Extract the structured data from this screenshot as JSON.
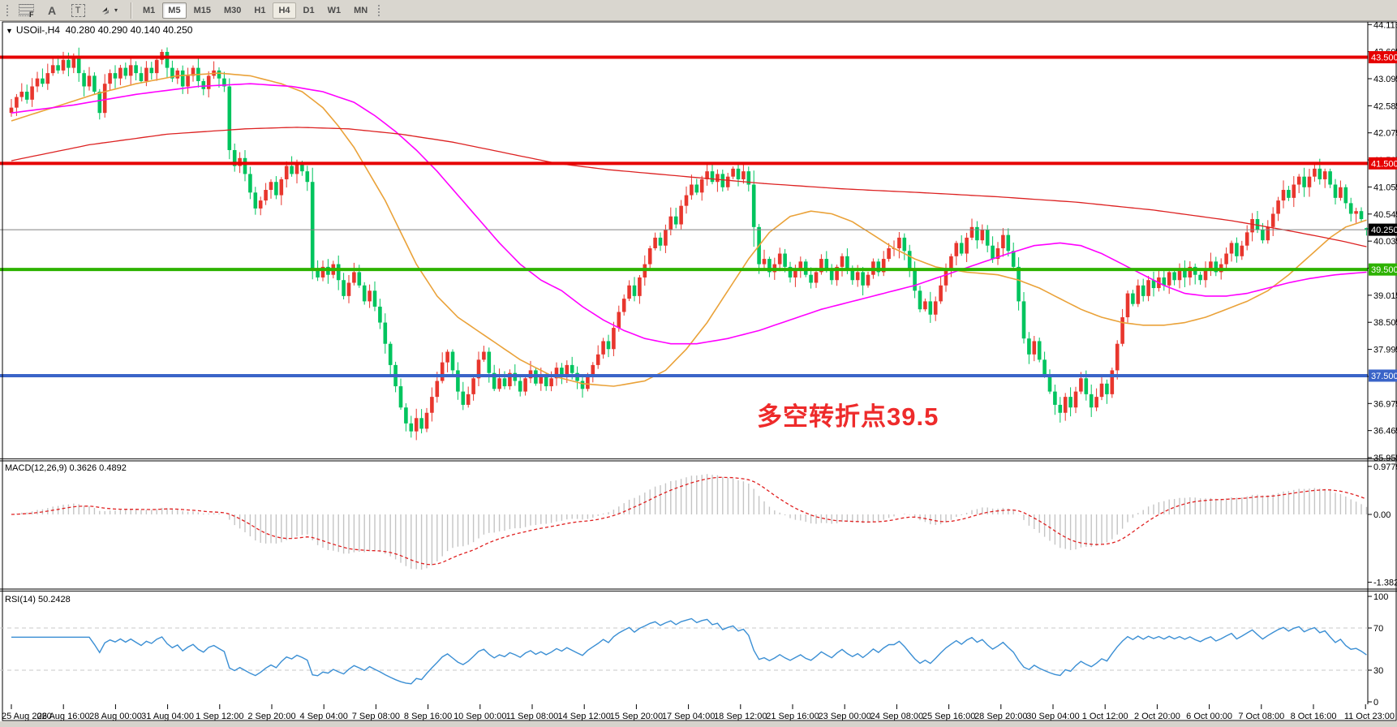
{
  "toolbar": {
    "tools": [
      {
        "name": "fibonacci-retracement",
        "label": "F"
      },
      {
        "name": "text",
        "label": "A"
      },
      {
        "name": "text-label",
        "label": "T"
      },
      {
        "name": "arrows",
        "label": "▴▾"
      }
    ],
    "arrows_caret": "▾",
    "timeframes": [
      "M1",
      "M5",
      "M15",
      "M30",
      "H1",
      "H4",
      "D1",
      "W1",
      "MN"
    ],
    "pressed_timeframe": "M5",
    "active_timeframe": "H4"
  },
  "chart_header": {
    "collapse_glyph": "▼",
    "text": "USOil-,H4  40.280 40.290 40.140 40.250"
  },
  "indicators": {
    "macd_header": "MACD(12,26,9) 0.3626 0.4892",
    "rsi_header": "RSI(14) 50.2428"
  },
  "annotation": {
    "text": "多空转折点39.5",
    "color": "#ee2b2b"
  },
  "chart_data": {
    "type": "candlestick",
    "symbol": "USOil-",
    "timeframe": "H4",
    "ohlc_current": {
      "open": 40.28,
      "high": 40.29,
      "low": 40.14,
      "close": 40.25
    },
    "colors": {
      "up_candle": "#e8362d",
      "down_candle": "#00c45e",
      "background": "#ffffff",
      "ma_fast": "#eaa239",
      "ma_medium": "#ff00ff",
      "ma_slow": "#dd2222",
      "macd_histogram": "#c4c4c4",
      "macd_signal": "#e02020",
      "rsi_line": "#3b8fd4"
    },
    "price_axis": {
      "min": 35.94,
      "max": 44.15,
      "tick_labels": [
        "44.115",
        "43.605",
        "43.095",
        "42.585",
        "42.075",
        "41.565",
        "41.055",
        "40.545",
        "40.035",
        "39.525",
        "39.015",
        "38.505",
        "37.995",
        "37.485",
        "36.975",
        "36.465",
        "35.955"
      ]
    },
    "levels": [
      {
        "label": "43.500",
        "price": 43.5,
        "color": "#e60000",
        "width": 4,
        "badge_text": "#ffffff"
      },
      {
        "label": "41.500",
        "price": 41.5,
        "color": "#e60000",
        "width": 4,
        "badge_text": "#ffffff"
      },
      {
        "label": "39.500",
        "price": 39.5,
        "color": "#2db200",
        "width": 4,
        "badge_text": "#ffffff"
      },
      {
        "label": "37.500",
        "price": 37.5,
        "color": "#3a64c8",
        "width": 4,
        "badge_text": "#ffffff"
      },
      {
        "label": "40.250",
        "price": 40.25,
        "color": "#808080",
        "width": 1,
        "badge_bg": "#000000",
        "badge_text": "#ffffff",
        "current": true
      }
    ],
    "time_labels": [
      "25 Aug 2020",
      "26 Aug 16:00",
      "28 Aug 00:00",
      "31 Aug 04:00",
      "1 Sep 12:00",
      "2 Sep 20:00",
      "4 Sep 04:00",
      "7 Sep 08:00",
      "8 Sep 16:00",
      "10 Sep 00:00",
      "11 Sep 08:00",
      "14 Sep 12:00",
      "15 Sep 20:00",
      "17 Sep 04:00",
      "18 Sep 12:00",
      "21 Sep 16:00",
      "23 Sep 00:00",
      "24 Sep 08:00",
      "25 Sep 16:00",
      "28 Sep 20:00",
      "30 Sep 04:00",
      "1 Oct 12:00",
      "2 Oct 20:00",
      "6 Oct 00:00",
      "7 Oct 08:00",
      "8 Oct 16:00",
      "11 Oct 23:00"
    ],
    "bars_per_time_label": 10,
    "closes": [
      42.55,
      42.75,
      42.85,
      42.7,
      42.95,
      43.1,
      43.0,
      43.2,
      43.35,
      43.25,
      43.45,
      43.3,
      43.5,
      43.2,
      42.95,
      43.15,
      42.85,
      42.45,
      43.0,
      43.2,
      43.1,
      43.3,
      43.15,
      43.35,
      43.2,
      43.05,
      43.3,
      43.2,
      43.45,
      43.6,
      43.3,
      43.1,
      43.25,
      42.95,
      43.15,
      43.3,
      43.05,
      42.9,
      43.15,
      43.25,
      43.1,
      42.95,
      41.75,
      41.45,
      41.6,
      41.3,
      40.95,
      40.65,
      40.8,
      41.0,
      41.15,
      40.9,
      41.2,
      41.45,
      41.3,
      41.5,
      41.35,
      41.15,
      39.5,
      39.35,
      39.55,
      39.4,
      39.6,
      39.3,
      39.0,
      39.25,
      39.45,
      39.2,
      38.9,
      39.1,
      38.8,
      38.5,
      38.1,
      37.7,
      37.3,
      36.9,
      36.6,
      36.45,
      36.7,
      36.5,
      36.8,
      37.1,
      37.4,
      37.75,
      37.95,
      37.6,
      37.2,
      36.95,
      37.15,
      37.45,
      37.8,
      37.95,
      37.55,
      37.25,
      37.45,
      37.3,
      37.55,
      37.4,
      37.2,
      37.45,
      37.6,
      37.35,
      37.5,
      37.3,
      37.45,
      37.65,
      37.5,
      37.7,
      37.55,
      37.4,
      37.25,
      37.5,
      37.7,
      37.9,
      38.15,
      38.0,
      38.4,
      38.7,
      38.95,
      39.2,
      39.0,
      39.35,
      39.6,
      39.9,
      40.1,
      39.95,
      40.25,
      40.5,
      40.35,
      40.7,
      40.9,
      41.1,
      40.95,
      41.2,
      41.35,
      41.15,
      41.3,
      41.05,
      41.25,
      41.4,
      41.2,
      41.35,
      41.1,
      40.3,
      39.6,
      39.7,
      39.45,
      39.6,
      39.8,
      39.55,
      39.35,
      39.5,
      39.65,
      39.4,
      39.25,
      39.45,
      39.7,
      39.5,
      39.3,
      39.55,
      39.75,
      39.5,
      39.3,
      39.45,
      39.2,
      39.4,
      39.65,
      39.45,
      39.7,
      39.9,
      39.9,
      40.1,
      39.85,
      39.5,
      39.1,
      38.75,
      38.9,
      38.65,
      38.9,
      39.2,
      39.5,
      39.75,
      40.0,
      39.8,
      40.1,
      40.3,
      40.05,
      40.25,
      39.95,
      39.7,
      39.9,
      40.15,
      39.85,
      39.55,
      38.9,
      38.2,
      37.9,
      38.15,
      37.8,
      37.5,
      37.2,
      36.95,
      36.8,
      37.1,
      36.9,
      37.2,
      37.45,
      37.15,
      36.9,
      37.1,
      37.35,
      37.15,
      37.6,
      38.1,
      38.6,
      39.05,
      38.85,
      39.2,
      39.0,
      39.3,
      39.15,
      39.35,
      39.2,
      39.45,
      39.3,
      39.5,
      39.35,
      39.55,
      39.4,
      39.3,
      39.5,
      39.65,
      39.45,
      39.6,
      39.8,
      40.0,
      39.75,
      39.95,
      40.2,
      40.45,
      40.25,
      40.05,
      40.3,
      40.55,
      40.8,
      41.0,
      40.85,
      41.1,
      41.25,
      41.05,
      41.25,
      41.4,
      41.2,
      41.35,
      41.1,
      40.85,
      41.05,
      40.75,
      40.55,
      40.6,
      40.45,
      40.25
    ],
    "moving_averages": [
      {
        "name": "fast-ma-orange",
        "color": "#eaa239",
        "anchors": [
          [
            0,
            42.3
          ],
          [
            8,
            42.55
          ],
          [
            16,
            42.8
          ],
          [
            24,
            43.0
          ],
          [
            32,
            43.15
          ],
          [
            40,
            43.2
          ],
          [
            46,
            43.15
          ],
          [
            52,
            43.0
          ],
          [
            56,
            42.85
          ],
          [
            60,
            42.55
          ],
          [
            63,
            42.2
          ],
          [
            66,
            41.8
          ],
          [
            69,
            41.3
          ],
          [
            72,
            40.8
          ],
          [
            75,
            40.2
          ],
          [
            78,
            39.6
          ],
          [
            82,
            39.0
          ],
          [
            86,
            38.6
          ],
          [
            92,
            38.2
          ],
          [
            98,
            37.8
          ],
          [
            104,
            37.5
          ],
          [
            110,
            37.35
          ],
          [
            116,
            37.3
          ],
          [
            122,
            37.4
          ],
          [
            126,
            37.6
          ],
          [
            130,
            38.0
          ],
          [
            134,
            38.5
          ],
          [
            138,
            39.1
          ],
          [
            142,
            39.7
          ],
          [
            146,
            40.2
          ],
          [
            150,
            40.5
          ],
          [
            154,
            40.6
          ],
          [
            158,
            40.55
          ],
          [
            162,
            40.4
          ],
          [
            166,
            40.15
          ],
          [
            170,
            39.9
          ],
          [
            174,
            39.7
          ],
          [
            178,
            39.55
          ],
          [
            184,
            39.45
          ],
          [
            190,
            39.4
          ],
          [
            194,
            39.3
          ],
          [
            198,
            39.15
          ],
          [
            202,
            38.95
          ],
          [
            206,
            38.75
          ],
          [
            210,
            38.6
          ],
          [
            214,
            38.5
          ],
          [
            218,
            38.45
          ],
          [
            222,
            38.45
          ],
          [
            226,
            38.5
          ],
          [
            230,
            38.6
          ],
          [
            234,
            38.75
          ],
          [
            238,
            38.9
          ],
          [
            242,
            39.1
          ],
          [
            246,
            39.4
          ],
          [
            250,
            39.75
          ],
          [
            254,
            40.1
          ],
          [
            257,
            40.3
          ],
          [
            261,
            40.43
          ]
        ]
      },
      {
        "name": "medium-ma-magenta",
        "color": "#ff00ff",
        "anchors": [
          [
            0,
            42.45
          ],
          [
            12,
            42.6
          ],
          [
            24,
            42.8
          ],
          [
            36,
            42.95
          ],
          [
            46,
            43.0
          ],
          [
            54,
            42.95
          ],
          [
            60,
            42.85
          ],
          [
            66,
            42.65
          ],
          [
            70,
            42.4
          ],
          [
            74,
            42.1
          ],
          [
            78,
            41.75
          ],
          [
            82,
            41.35
          ],
          [
            86,
            40.9
          ],
          [
            90,
            40.45
          ],
          [
            94,
            40.0
          ],
          [
            98,
            39.6
          ],
          [
            102,
            39.3
          ],
          [
            106,
            39.1
          ],
          [
            110,
            38.8
          ],
          [
            114,
            38.55
          ],
          [
            118,
            38.35
          ],
          [
            122,
            38.2
          ],
          [
            127,
            38.1
          ],
          [
            132,
            38.1
          ],
          [
            138,
            38.2
          ],
          [
            144,
            38.35
          ],
          [
            150,
            38.55
          ],
          [
            156,
            38.75
          ],
          [
            162,
            38.9
          ],
          [
            168,
            39.05
          ],
          [
            174,
            39.2
          ],
          [
            180,
            39.4
          ],
          [
            186,
            39.6
          ],
          [
            192,
            39.8
          ],
          [
            197,
            39.95
          ],
          [
            202,
            40.0
          ],
          [
            206,
            39.95
          ],
          [
            210,
            39.8
          ],
          [
            214,
            39.6
          ],
          [
            218,
            39.4
          ],
          [
            222,
            39.2
          ],
          [
            226,
            39.05
          ],
          [
            230,
            39.0
          ],
          [
            234,
            39.0
          ],
          [
            238,
            39.05
          ],
          [
            242,
            39.15
          ],
          [
            246,
            39.25
          ],
          [
            250,
            39.33
          ],
          [
            255,
            39.4
          ],
          [
            261,
            39.45
          ]
        ]
      },
      {
        "name": "slow-ma-red",
        "color": "#dd2222",
        "anchors": [
          [
            0,
            41.55
          ],
          [
            15,
            41.85
          ],
          [
            30,
            42.05
          ],
          [
            45,
            42.15
          ],
          [
            55,
            42.18
          ],
          [
            65,
            42.15
          ],
          [
            75,
            42.05
          ],
          [
            85,
            41.9
          ],
          [
            95,
            41.7
          ],
          [
            105,
            41.5
          ],
          [
            115,
            41.38
          ],
          [
            130,
            41.25
          ],
          [
            145,
            41.12
          ],
          [
            160,
            41.02
          ],
          [
            175,
            40.95
          ],
          [
            190,
            40.87
          ],
          [
            205,
            40.77
          ],
          [
            220,
            40.62
          ],
          [
            235,
            40.42
          ],
          [
            245,
            40.25
          ],
          [
            252,
            40.12
          ],
          [
            257,
            40.02
          ],
          [
            261,
            39.93
          ]
        ]
      }
    ],
    "macd": {
      "title": "MACD(12,26,9)",
      "params": [
        12,
        26,
        9
      ],
      "main_value": 0.3626,
      "signal_value": 0.4892,
      "axis_labels": [
        "0.9779",
        "0.00",
        "-1.382"
      ],
      "axis_values": [
        0.9779,
        0,
        -1.382
      ]
    },
    "rsi": {
      "title": "RSI(14)",
      "period": 14,
      "value": 50.2428,
      "overbought": 70,
      "oversold": 30,
      "axis_labels": [
        "100",
        "70",
        "30",
        "0"
      ],
      "axis_values": [
        100,
        70,
        30,
        0
      ]
    }
  }
}
